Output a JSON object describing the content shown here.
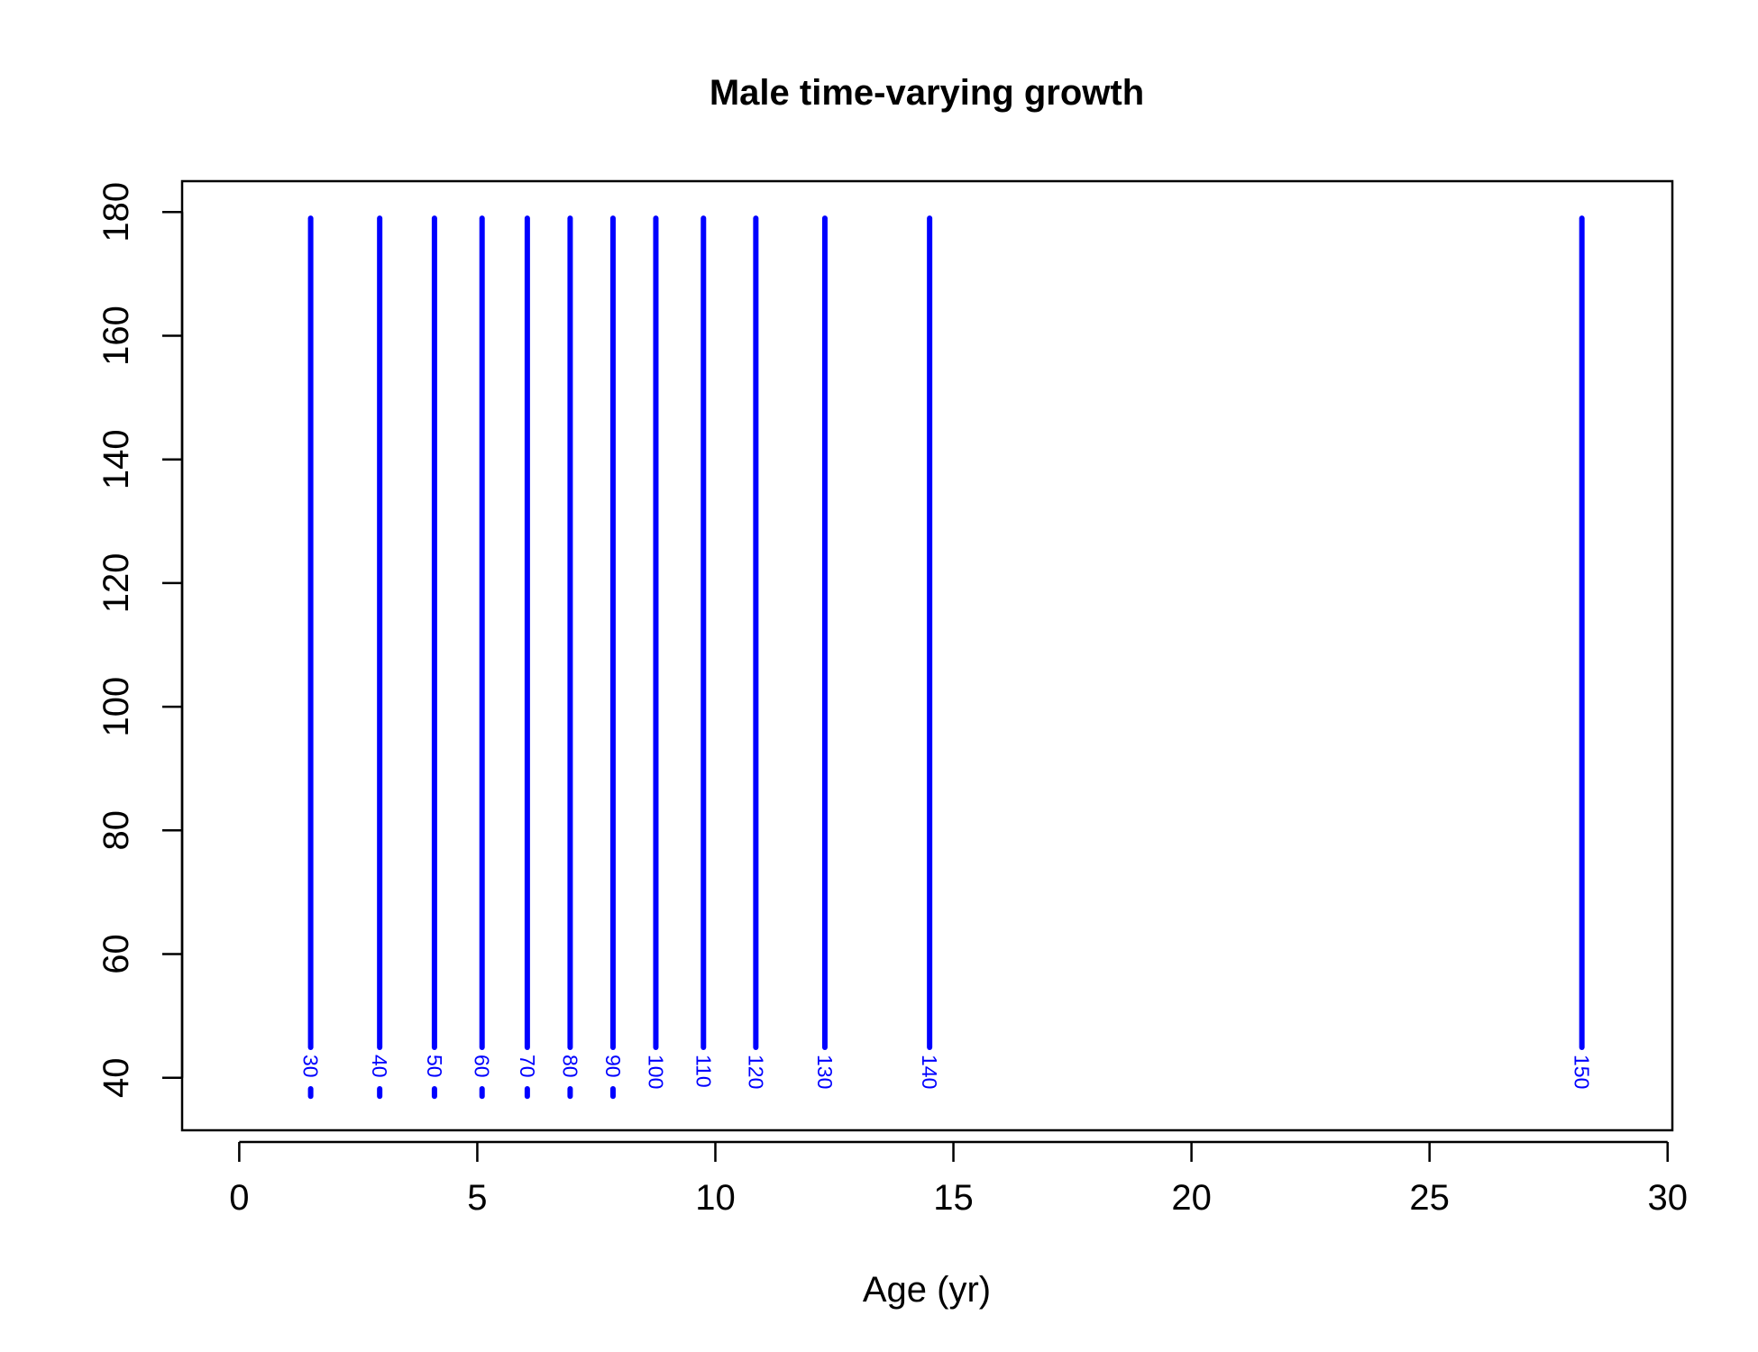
{
  "chart_data": {
    "type": "line",
    "title": "Male time-varying growth",
    "xlabel": "Age (yr)",
    "ylabel": "",
    "xlim": [
      -1.2,
      30.1
    ],
    "ylim": [
      31.5,
      185
    ],
    "xticks": [
      0,
      5,
      10,
      15,
      20,
      25,
      30
    ],
    "yticks": [
      40,
      60,
      80,
      100,
      120,
      140,
      160,
      180
    ],
    "grid": false,
    "legend": "none",
    "line_color": "#0000ff",
    "series": [
      {
        "label": "30",
        "x": 1.5,
        "y_bottom": 37,
        "y_top": 179
      },
      {
        "label": "40",
        "x": 2.95,
        "y_bottom": 37,
        "y_top": 179
      },
      {
        "label": "50",
        "x": 4.1,
        "y_bottom": 37,
        "y_top": 179
      },
      {
        "label": "60",
        "x": 5.1,
        "y_bottom": 37,
        "y_top": 179
      },
      {
        "label": "70",
        "x": 6.05,
        "y_bottom": 37,
        "y_top": 179
      },
      {
        "label": "80",
        "x": 6.95,
        "y_bottom": 37,
        "y_top": 179
      },
      {
        "label": "90",
        "x": 7.85,
        "y_bottom": 37,
        "y_top": 179
      },
      {
        "label": "100",
        "x": 8.75,
        "y_bottom": 37,
        "y_top": 179
      },
      {
        "label": "110",
        "x": 9.75,
        "y_bottom": 37,
        "y_top": 179
      },
      {
        "label": "120",
        "x": 10.85,
        "y_bottom": 37,
        "y_top": 179
      },
      {
        "label": "130",
        "x": 12.3,
        "y_bottom": 37,
        "y_top": 179
      },
      {
        "label": "140",
        "x": 14.5,
        "y_bottom": 37,
        "y_top": 179
      },
      {
        "label": "150",
        "x": 28.2,
        "y_bottom": 37,
        "y_top": 179
      }
    ]
  }
}
